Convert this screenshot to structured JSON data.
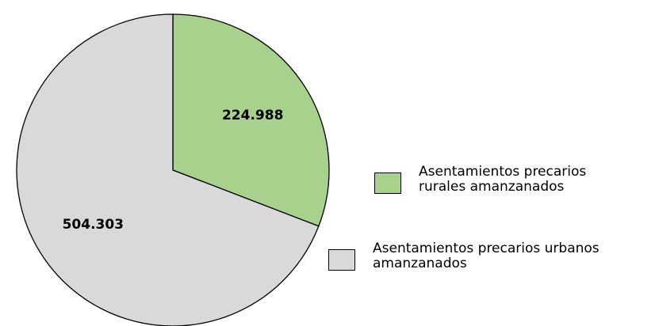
{
  "chart_data": {
    "type": "pie",
    "categories": [
      "Asentamientos precarios rurales amanzanados",
      "Asentamientos precarios urbanos amanzanados"
    ],
    "values": [
      224988,
      504303
    ],
    "value_labels": [
      "224.988",
      "504.303"
    ],
    "colors": [
      "#a9d18e",
      "#d9d9d9"
    ]
  }
}
